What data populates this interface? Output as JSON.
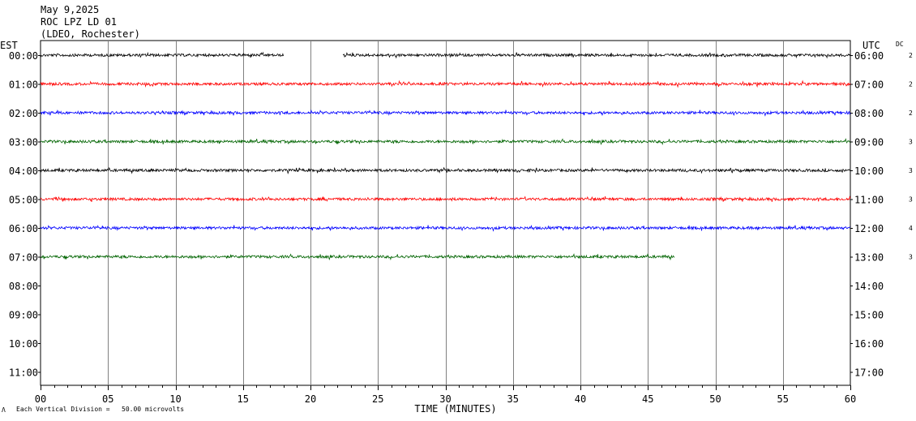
{
  "header": {
    "date": "May 9,2025",
    "station": "ROC LPZ LD 01",
    "network": "(LDEO, Rochester)"
  },
  "chart_data": {
    "type": "line",
    "title": "May 9,2025",
    "xlabel": "TIME (MINUTES)",
    "left_axis_label": "EST",
    "right_axis_label": "UTC",
    "dc_label": "DC",
    "xlim": [
      0,
      60
    ],
    "x_ticks": [
      "00",
      "05",
      "10",
      "15",
      "20",
      "25",
      "30",
      "35",
      "40",
      "45",
      "50",
      "55",
      "60"
    ],
    "rows_left": [
      "00:00",
      "01:00",
      "02:00",
      "03:00",
      "04:00",
      "05:00",
      "06:00",
      "07:00",
      "08:00",
      "09:00",
      "10:00",
      "11:00"
    ],
    "rows_right": [
      "06:00",
      "07:00",
      "08:00",
      "09:00",
      "10:00",
      "11:00",
      "12:00",
      "13:00",
      "14:00",
      "15:00",
      "16:00",
      "17:00"
    ],
    "dc_values": [
      "2",
      "2",
      "2",
      "3",
      "3",
      "3",
      "4",
      "3"
    ],
    "trace_colors": [
      "#000000",
      "#ff0000",
      "#0000ff",
      "#006400"
    ],
    "traces": [
      {
        "row": 0,
        "segments": [
          [
            0,
            18
          ],
          [
            22.4,
            60
          ]
        ]
      },
      {
        "row": 1,
        "segments": [
          [
            0,
            60
          ]
        ]
      },
      {
        "row": 2,
        "segments": [
          [
            0,
            60
          ]
        ]
      },
      {
        "row": 3,
        "segments": [
          [
            0,
            60
          ]
        ]
      },
      {
        "row": 4,
        "segments": [
          [
            0,
            60
          ]
        ]
      },
      {
        "row": 5,
        "segments": [
          [
            0,
            60
          ]
        ]
      },
      {
        "row": 6,
        "segments": [
          [
            0,
            60
          ]
        ]
      },
      {
        "row": 7,
        "segments": [
          [
            0,
            47
          ]
        ]
      }
    ],
    "grid": true
  },
  "footer": {
    "marker": "Λ",
    "scale_text": "Each Vertical Division =   50.00 microvolts"
  }
}
